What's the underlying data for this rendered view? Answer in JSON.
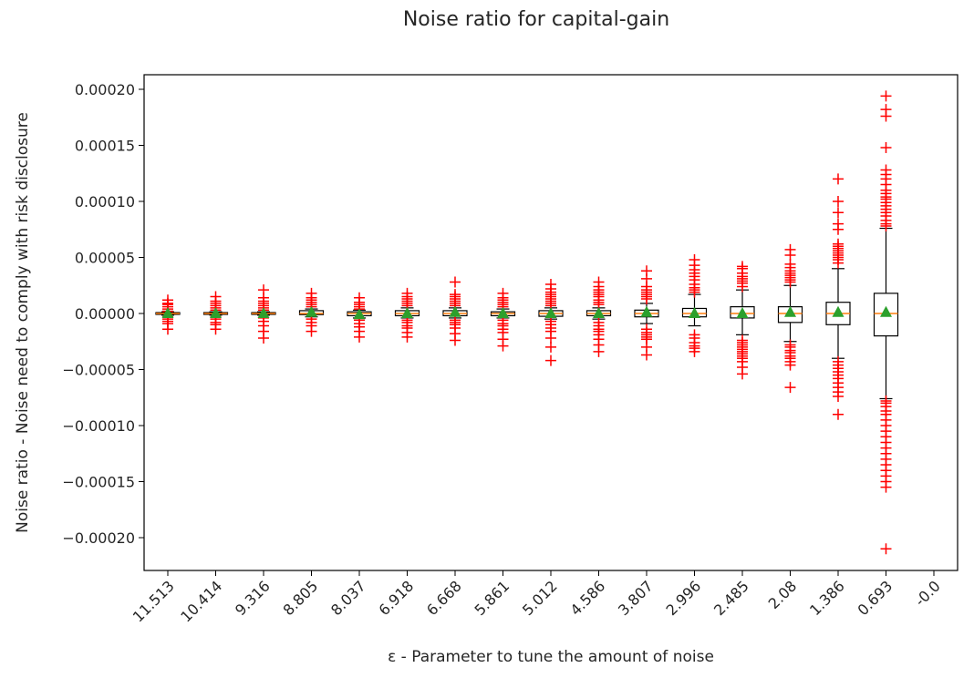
{
  "chart_data": {
    "type": "boxplot",
    "title": "Noise ratio for capital-gain",
    "xlabel": "ε - Parameter to tune the amount of noise",
    "ylabel": "Noise ratio - Noise need to comply with risk disclosure",
    "ylim": [
      -0.00023,
      0.00021
    ],
    "yticks": [
      {
        "value": 0.0002,
        "label": "0.00020"
      },
      {
        "value": 0.00015,
        "label": "0.00015"
      },
      {
        "value": 0.0001,
        "label": "0.00010"
      },
      {
        "value": 5e-05,
        "label": "0.00005"
      },
      {
        "value": 0.0,
        "label": "0.00000"
      },
      {
        "value": -5e-05,
        "label": "−0.00005"
      },
      {
        "value": -0.0001,
        "label": "−0.00010"
      },
      {
        "value": -0.00015,
        "label": "−0.00015"
      },
      {
        "value": -0.0002,
        "label": "−0.00020"
      }
    ],
    "categories": [
      "11.513",
      "10.414",
      "9.316",
      "8.805",
      "8.037",
      "6.918",
      "6.668",
      "5.861",
      "5.012",
      "4.586",
      "3.807",
      "2.996",
      "2.485",
      "2.08",
      "1.386",
      "0.693",
      "-0.0"
    ],
    "colors": {
      "box": "#000000",
      "median": "#ff7f0e",
      "mean": "#2ca02c",
      "outlier": "#ff0000"
    },
    "boxes": [
      {
        "q1": -8e-07,
        "median": 0.0,
        "q3": 8e-07,
        "whislo": -1.5e-06,
        "whishi": 1.5e-06,
        "mean": 0.0,
        "outliers": [
          2e-06,
          4e-06,
          6e-06,
          8e-06,
          9e-06,
          1.2e-05,
          -3e-06,
          -5e-06,
          -7e-06,
          -9e-06,
          -1.4e-05
        ]
      },
      {
        "q1": -8e-07,
        "median": 0.0,
        "q3": 8e-07,
        "whislo": -1.5e-06,
        "whishi": 1.5e-06,
        "mean": 0.0,
        "outliers": [
          3e-06,
          5e-06,
          7e-06,
          9e-06,
          1.1e-05,
          1.5e-05,
          -3e-06,
          -5e-06,
          -8e-06,
          -1e-05,
          -1.4e-05
        ]
      },
      {
        "q1": -8e-07,
        "median": 0.0,
        "q3": 8e-07,
        "whislo": -1.5e-06,
        "whishi": 1.5e-06,
        "mean": 0.0,
        "outliers": [
          3e-06,
          5e-06,
          7e-06,
          9e-06,
          1.1e-05,
          1.4e-05,
          2.1e-05,
          -4e-06,
          -7e-06,
          -1.1e-05,
          -1.6e-05,
          -2.2e-05
        ]
      },
      {
        "q1": -1e-06,
        "median": 0.0,
        "q3": 2.5e-06,
        "whislo": -3e-06,
        "whishi": 4e-06,
        "mean": 1e-06,
        "outliers": [
          6e-06,
          8e-06,
          1e-05,
          1.2e-05,
          1.4e-05,
          1.8e-05,
          -5e-06,
          -8e-06,
          -1.1e-05,
          -1.6e-05
        ]
      },
      {
        "q1": -2e-06,
        "median": 0.0,
        "q3": 1.5e-06,
        "whislo": -4e-06,
        "whishi": 3e-06,
        "mean": -1e-06,
        "outliers": [
          4e-06,
          6e-06,
          8e-06,
          1e-05,
          1.4e-05,
          -6e-06,
          -9e-06,
          -1.2e-05,
          -1.6e-05,
          -2.1e-05
        ]
      },
      {
        "q1": -2e-06,
        "median": 0.0,
        "q3": 2.5e-06,
        "whislo": -4e-06,
        "whishi": 5e-06,
        "mean": 0.0,
        "outliers": [
          7e-06,
          9e-06,
          1.1e-05,
          1.3e-05,
          1.5e-05,
          1.8e-05,
          -6e-06,
          -8e-06,
          -1.1e-05,
          -1.3e-05,
          -1.7e-05,
          -2.1e-05
        ]
      },
      {
        "q1": -2e-06,
        "median": 0.0,
        "q3": 2.5e-06,
        "whislo": -4e-06,
        "whishi": 5e-06,
        "mean": 1e-06,
        "outliers": [
          7e-06,
          9e-06,
          1.1e-05,
          1.3e-05,
          1.5e-05,
          1.7e-05,
          2.8e-05,
          -6e-06,
          -8e-06,
          -1e-05,
          -1.3e-05,
          -1.8e-05,
          -2.4e-05
        ]
      },
      {
        "q1": -2e-06,
        "median": 0.0,
        "q3": 1.5e-06,
        "whislo": -4e-06,
        "whishi": 4e-06,
        "mean": 0.0,
        "outliers": [
          6e-06,
          8e-06,
          1e-05,
          1.2e-05,
          1.4e-05,
          1.8e-05,
          -6e-06,
          -9e-06,
          -1.1e-05,
          -1.4e-05,
          -1.7e-05,
          -2.3e-05,
          -2.9e-05
        ]
      },
      {
        "q1": -2.5e-06,
        "median": 0.0,
        "q3": 2.5e-06,
        "whislo": -5e-06,
        "whishi": 5e-06,
        "mean": 0.0,
        "outliers": [
          7e-06,
          9e-06,
          1.1e-05,
          1.3e-05,
          1.5e-05,
          1.7e-05,
          1.9e-05,
          2.2e-05,
          2.6e-05,
          -7e-06,
          -1e-05,
          -1.3e-05,
          -1.6e-05,
          -2.2e-05,
          -3e-05,
          -4.2e-05
        ]
      },
      {
        "q1": -2e-06,
        "median": 0.0,
        "q3": 2.5e-06,
        "whislo": -5e-06,
        "whishi": 5e-06,
        "mean": 0.0,
        "outliers": [
          8e-06,
          1e-05,
          1.2e-05,
          1.5e-05,
          1.7e-05,
          1.9e-05,
          2.1e-05,
          2.4e-05,
          2.8e-05,
          -8e-06,
          -1.1e-05,
          -1.4e-05,
          -1.6e-05,
          -1.9e-05,
          -2.3e-05,
          -2.8e-05,
          -3.4e-05
        ]
      },
      {
        "q1": -3e-06,
        "median": 0.0,
        "q3": 3e-06,
        "whislo": -9e-06,
        "whishi": 9e-06,
        "mean": 1e-06,
        "outliers": [
          1.3e-05,
          1.5e-05,
          1.7e-05,
          1.9e-05,
          2.1e-05,
          2.4e-05,
          3.1e-05,
          3.8e-05,
          -1.4e-05,
          -1.7e-05,
          -1.9e-05,
          -2.1e-05,
          -2.3e-05,
          -3e-05,
          -3.7e-05
        ]
      },
      {
        "q1": -3e-06,
        "median": 0.0,
        "q3": 4.5e-06,
        "whislo": -1.1e-05,
        "whishi": 1.7e-05,
        "mean": 0.0,
        "outliers": [
          1.9e-05,
          2.1e-05,
          2.3e-05,
          2.6e-05,
          3e-05,
          3.3e-05,
          3.6e-05,
          3.9e-05,
          4.3e-05,
          4.8e-05,
          -1.9e-05,
          -2.2e-05,
          -2.6e-05,
          -2.9e-05,
          -3.1e-05,
          -3.4e-05
        ]
      },
      {
        "q1": -4e-06,
        "median": 0.0,
        "q3": 6e-06,
        "whislo": -1.9e-05,
        "whishi": 2.1e-05,
        "mean": 0.0,
        "outliers": [
          2.4e-05,
          2.7e-05,
          2.9e-05,
          3.1e-05,
          3.3e-05,
          3.6e-05,
          4e-05,
          4.2e-05,
          -2.4e-05,
          -2.6e-05,
          -2.8e-05,
          -3e-05,
          -3.2e-05,
          -3.4e-05,
          -3.6e-05,
          -3.8e-05,
          -4e-05,
          -4.3e-05,
          -4.8e-05,
          -5.4e-05
        ]
      },
      {
        "q1": -8e-06,
        "median": 0.0,
        "q3": 6e-06,
        "whislo": -2.5e-05,
        "whishi": 2.5e-05,
        "mean": 1e-06,
        "outliers": [
          2.8e-05,
          3e-05,
          3.2e-05,
          3.4e-05,
          3.6e-05,
          3.8e-05,
          4.1e-05,
          4.4e-05,
          5.2e-05,
          5.7e-05,
          -2.8e-05,
          -3e-05,
          -3.3e-05,
          -3.5e-05,
          -3.8e-05,
          -4e-05,
          -4.3e-05,
          -4.6e-05,
          -6.6e-05
        ]
      },
      {
        "q1": -1e-05,
        "median": 0.0,
        "q3": 1e-05,
        "whislo": -4e-05,
        "whishi": 4e-05,
        "mean": 1e-06,
        "outliers": [
          4.5e-05,
          4.8e-05,
          5e-05,
          5.2e-05,
          5.4e-05,
          5.6e-05,
          5.8e-05,
          6e-05,
          6.2e-05,
          7.5e-05,
          8e-05,
          9e-05,
          0.0001,
          0.00012,
          -4.3e-05,
          -4.6e-05,
          -4.9e-05,
          -5.2e-05,
          -5.5e-05,
          -5.8e-05,
          -6.2e-05,
          -6.6e-05,
          -7e-05,
          -7.4e-05,
          -9e-05
        ]
      },
      {
        "q1": -2e-05,
        "median": 0.0,
        "q3": 1.8e-05,
        "whislo": -7.6e-05,
        "whishi": 7.6e-05,
        "mean": 1e-06,
        "outliers": [
          7.8e-05,
          8e-05,
          8.3e-05,
          8.7e-05,
          9e-05,
          9.3e-05,
          9.6e-05,
          9.9e-05,
          0.000102,
          0.000104,
          0.000107,
          0.00011,
          0.000115,
          0.00012,
          0.000124,
          0.000128,
          0.000148,
          0.000176,
          0.000182,
          0.000194,
          -7.8e-05,
          -8e-05,
          -8.3e-05,
          -8.7e-05,
          -9e-05,
          -9.5e-05,
          -0.0001,
          -0.000105,
          -0.00011,
          -0.000115,
          -0.00012,
          -0.000125,
          -0.00013,
          -0.000135,
          -0.00014,
          -0.000145,
          -0.00015,
          -0.000155,
          -0.00021
        ]
      },
      null
    ]
  }
}
